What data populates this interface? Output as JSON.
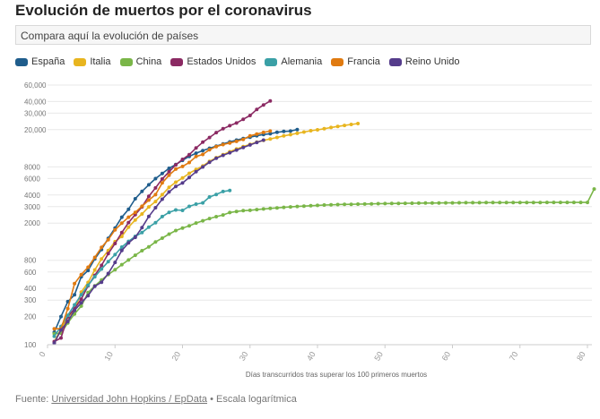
{
  "header": {
    "title": "Evolución de muertos por el coronavirus"
  },
  "search": {
    "placeholder": "Compara aquí la evolución de países"
  },
  "legend": [
    {
      "name": "España",
      "color": "#1f5d8c"
    },
    {
      "name": "Italia",
      "color": "#e8b51f"
    },
    {
      "name": "China",
      "color": "#7ab648"
    },
    {
      "name": "Estados Unidos",
      "color": "#8b2a63"
    },
    {
      "name": "Alemania",
      "color": "#3aa0a6"
    },
    {
      "name": "Francia",
      "color": "#e07a10"
    },
    {
      "name": "Reino Unido",
      "color": "#553c8b"
    }
  ],
  "footer": {
    "prefix": "Fuente: ",
    "source": "Universidad John Hopkins / EpData",
    "suffix": " • Escala logarítmica"
  },
  "chart_data": {
    "type": "line",
    "xlabel": "Días transcurridos tras superar los 100 primeros muertos",
    "ylabel": "",
    "yscale": "log",
    "xlim": [
      0,
      80
    ],
    "ylim": [
      100,
      60000
    ],
    "xticks": [
      0,
      10,
      20,
      30,
      40,
      50,
      60,
      70,
      80
    ],
    "yticks": [
      100,
      200,
      300,
      400,
      600,
      800,
      2000,
      3000,
      4000,
      6000,
      8000,
      20000,
      30000,
      40000,
      60000
    ],
    "ytick_labels": [
      "100",
      "200",
      "300",
      "400",
      "600",
      "800",
      "2000",
      "3000",
      "4000",
      "6000",
      "8000",
      "20,000",
      "30,000",
      "40,000",
      "60,000"
    ],
    "grid": true,
    "series": [
      {
        "name": "España",
        "color": "#1f5d8c",
        "values": [
          136,
          200,
          289,
          342,
          533,
          623,
          830,
          1043,
          1375,
          1772,
          2311,
          2808,
          3647,
          4365,
          5138,
          5982,
          6803,
          7716,
          8464,
          9387,
          10348,
          11198,
          11947,
          12641,
          13341,
          14045,
          14792,
          15447,
          16081,
          16606,
          17209,
          17756,
          18056,
          18708,
          19130,
          19315,
          20043
        ]
      },
      {
        "name": "Italia",
        "color": "#e8b51f",
        "values": [
          107,
          148,
          197,
          233,
          366,
          463,
          631,
          827,
          1016,
          1266,
          1441,
          1809,
          2158,
          2503,
          2978,
          3405,
          4032,
          4825,
          5476,
          6077,
          6820,
          7503,
          8165,
          9134,
          10023,
          10779,
          11591,
          12428,
          13155,
          13915,
          14681,
          15362,
          15887,
          16523,
          17127,
          17669,
          18279,
          18849,
          19468,
          19899,
          20465,
          21067,
          21645,
          22170,
          22745,
          23227
        ]
      },
      {
        "name": "China",
        "color": "#7ab648",
        "values": [
          131,
          133,
          171,
          213,
          259,
          361,
          426,
          492,
          564,
          634,
          719,
          806,
          906,
          1013,
          1113,
          1259,
          1380,
          1523,
          1665,
          1770,
          1868,
          2004,
          2118,
          2236,
          2345,
          2442,
          2592,
          2663,
          2715,
          2744,
          2788,
          2835,
          2870,
          2912,
          2945,
          2981,
          3013,
          3042,
          3070,
          3097,
          3119,
          3136,
          3158,
          3169,
          3176,
          3189,
          3199,
          3213,
          3226,
          3237,
          3245,
          3248,
          3255,
          3261,
          3270,
          3277,
          3281,
          3287,
          3292,
          3295,
          3300,
          3304,
          3305,
          3309,
          3311,
          3312,
          3314,
          3316,
          3318,
          3320,
          3322,
          3323,
          3324,
          3325,
          3326,
          3327,
          3328,
          3329,
          3330,
          3331,
          4632
        ]
      },
      {
        "name": "Estados Unidos",
        "color": "#8b2a63",
        "values": [
          108,
          118,
          200,
          244,
          307,
          427,
          552,
          706,
          942,
          1209,
          1581,
          2026,
          2467,
          2978,
          3873,
          4757,
          5926,
          7087,
          8407,
          9619,
          10783,
          12722,
          14695,
          16478,
          18586,
          20463,
          22020,
          23529,
          25832,
          28325,
          32916,
          36773,
          40478
        ]
      },
      {
        "name": "Alemania",
        "color": "#3aa0a6",
        "values": [
          123,
          157,
          206,
          267,
          342,
          433,
          533,
          645,
          775,
          920,
          1107,
          1275,
          1444,
          1584,
          1810,
          2016,
          2349,
          2607,
          2767,
          2736,
          3022,
          3194,
          3294,
          3804,
          4052,
          4352,
          4459
        ]
      },
      {
        "name": "Francia",
        "color": "#e07a10",
        "values": [
          148,
          148,
          243,
          450,
          562,
          674,
          860,
          1100,
          1331,
          1696,
          1995,
          2314,
          2606,
          3024,
          3523,
          4032,
          5387,
          6507,
          7560,
          8078,
          8911,
          10328,
          10869,
          12210,
          13197,
          13832,
          14393,
          14967,
          15729,
          17167,
          17920,
          18681,
          19323
        ]
      },
      {
        "name": "Reino Unido",
        "color": "#553c8b",
        "values": [
          104,
          144,
          177,
          233,
          281,
          335,
          422,
          465,
          578,
          759,
          1019,
          1228,
          1408,
          1789,
          2352,
          2921,
          3605,
          4313,
          4934,
          5373,
          6159,
          7097,
          7978,
          8958,
          9875,
          10612,
          11329,
          12107,
          12868,
          13729,
          14576,
          15464
        ]
      }
    ]
  }
}
